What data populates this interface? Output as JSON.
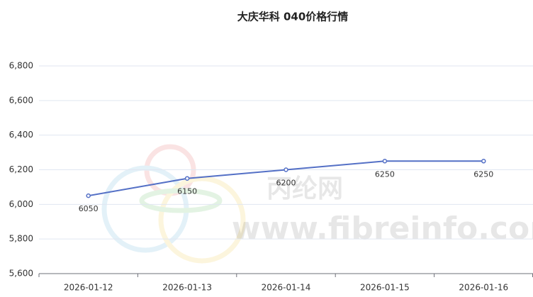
{
  "chart_data": {
    "type": "line",
    "title": "大庆华科 040价格行情",
    "categories": [
      "2026-01-12",
      "2026-01-13",
      "2026-01-14",
      "2026-01-15",
      "2026-01-16"
    ],
    "series": [
      {
        "name": "040",
        "color": "#5470c6",
        "values": [
          6050,
          6150,
          6200,
          6250,
          6250
        ]
      }
    ],
    "ylim": [
      5600,
      6800
    ],
    "yticks": [
      {
        "value": 5600,
        "label": "5,600"
      },
      {
        "value": 5800,
        "label": "5,800"
      },
      {
        "value": 6000,
        "label": "6,000"
      },
      {
        "value": 6200,
        "label": "6,200"
      },
      {
        "value": 6400,
        "label": "6,400"
      },
      {
        "value": 6600,
        "label": "6,600"
      },
      {
        "value": 6800,
        "label": "6,800"
      }
    ],
    "grid": true,
    "watermark": [
      "丙纶网",
      "www.fibreinfo.com"
    ]
  }
}
